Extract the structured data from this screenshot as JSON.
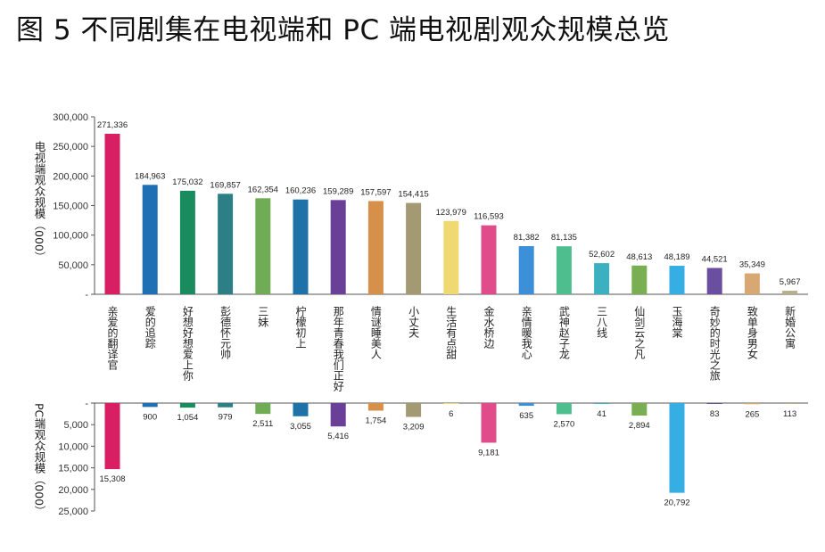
{
  "title": "图 5 不同剧集在电视端和 PC 端电视剧观众规模总览",
  "chart_data": [
    {
      "type": "bar",
      "ylabel": "电视端观众规模（000）",
      "ylim": [
        0,
        300000
      ],
      "yticks": [
        "300,000",
        "250,000",
        "200,000",
        "150,000",
        "100,000",
        "50,000",
        "-"
      ],
      "categories": [
        "亲爱的翻译官",
        "爱的追踪",
        "好想好想爱上你",
        "彭德怀元帅",
        "三妹",
        "柠檬初上",
        "那年青春我们正好",
        "情谜睡美人",
        "小丈夫",
        "生活有点甜",
        "金水桥边",
        "亲情暖我心",
        "武神赵子龙",
        "三八线",
        "仙剑云之凡",
        "玉海棠",
        "奇妙的时光之旅",
        "致单身男女",
        "新婚公寓"
      ],
      "values": [
        271336,
        184963,
        175032,
        169857,
        162354,
        160236,
        159289,
        157597,
        154415,
        123979,
        116593,
        81382,
        81135,
        52602,
        48613,
        48189,
        44521,
        35349,
        5967
      ],
      "value_labels": [
        "271,336",
        "184,963",
        "175,032",
        "169,857",
        "162,354",
        "160,236",
        "159,289",
        "157,597",
        "154,415",
        "123,979",
        "116,593",
        "81,382",
        "81,135",
        "52,602",
        "48,613",
        "48,189",
        "44,521",
        "35,349",
        "5,967"
      ]
    },
    {
      "type": "bar",
      "ylabel": "PC端观众规模（000）",
      "ylim": [
        0,
        25000
      ],
      "inverted": true,
      "yticks": [
        "-",
        "5,000",
        "10,000",
        "15,000",
        "20,000",
        "25,000"
      ],
      "categories": [
        "亲爱的翻译官",
        "爱的追踪",
        "好想好想爱上你",
        "彭德怀元帅",
        "三妹",
        "柠檬初上",
        "那年青春我们正好",
        "情谜睡美人",
        "小丈夫",
        "生活有点甜",
        "金水桥边",
        "亲情暖我心",
        "武神赵子龙",
        "三八线",
        "仙剑云之凡",
        "玉海棠",
        "奇妙的时光之旅",
        "致单身男女",
        "新婚公寓"
      ],
      "values": [
        15308,
        900,
        1054,
        979,
        2511,
        3055,
        5416,
        1754,
        3209,
        6,
        9181,
        635,
        2570,
        41,
        2894,
        20792,
        83,
        265,
        113
      ],
      "value_labels": [
        "15,308",
        "900",
        "1,054",
        "979",
        "2,511",
        "3,055",
        "5,416",
        "1,754",
        "3,209",
        "6",
        "9,181",
        "635",
        "2,570",
        "41",
        "2,894",
        "20,792",
        "83",
        "265",
        "113"
      ]
    }
  ],
  "colors": [
    "#d81f63",
    "#1f6fb5",
    "#198c5f",
    "#2d7f86",
    "#6fac55",
    "#1f72a8",
    "#6a3f98",
    "#d6904a",
    "#a39a74",
    "#f0d873",
    "#e04c8a",
    "#3c8fd9",
    "#4fbe8e",
    "#3ab0c0",
    "#79ae52",
    "#35aee3",
    "#6a4fa0",
    "#d8a872",
    "#b7b08b"
  ]
}
